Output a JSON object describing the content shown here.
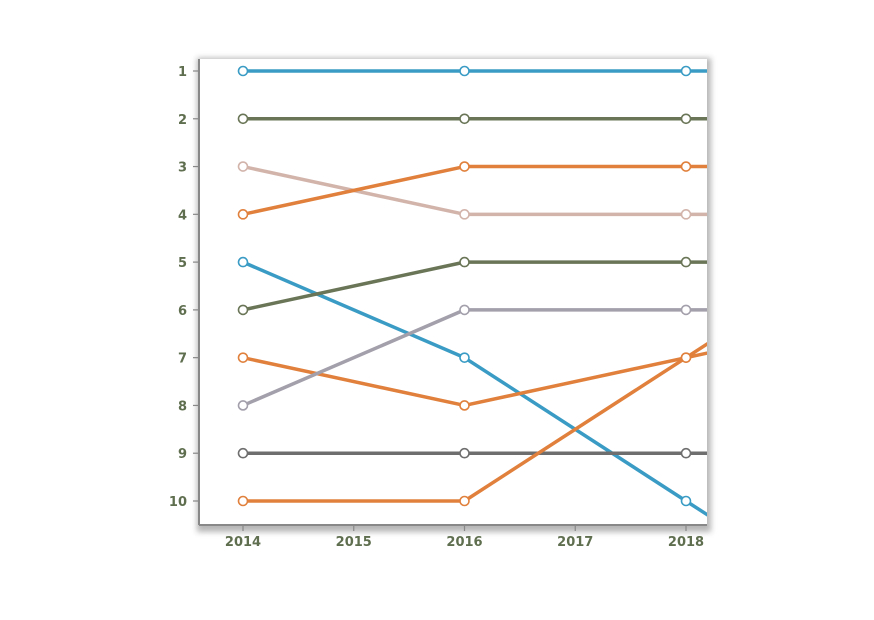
{
  "chart_data": {
    "type": "line",
    "title": "",
    "xlabel": "",
    "ylabel": "",
    "x_ticks": [
      "2014",
      "2015",
      "2016",
      "2017",
      "2018"
    ],
    "y_ticks": [
      "1",
      "2",
      "3",
      "4",
      "5",
      "6",
      "7",
      "8",
      "9",
      "10"
    ],
    "xlim": [
      2014,
      2018
    ],
    "ylim": [
      10,
      1
    ],
    "y_inverted": true,
    "grid": false,
    "legend": "none",
    "series": [
      {
        "color": "#3a9cc4",
        "x": [
          2014,
          2016,
          2018
        ],
        "values": [
          1,
          1,
          1
        ]
      },
      {
        "color": "#697556",
        "x": [
          2014,
          2016,
          2018
        ],
        "values": [
          2,
          2,
          2
        ]
      },
      {
        "color": "#d2b4ab",
        "x": [
          2014,
          2016,
          2018
        ],
        "values": [
          3,
          4,
          4
        ]
      },
      {
        "color": "#e0803c",
        "x": [
          2014,
          2016,
          2018
        ],
        "values": [
          4,
          3,
          3
        ]
      },
      {
        "color": "#3a9cc4",
        "x": [
          2014,
          2016,
          2018
        ],
        "values": [
          5,
          7,
          10
        ]
      },
      {
        "color": "#697556",
        "x": [
          2014,
          2016,
          2018
        ],
        "values": [
          6,
          5,
          5
        ]
      },
      {
        "color": "#e0803c",
        "x": [
          2014,
          2016,
          2018
        ],
        "values": [
          7,
          8,
          7
        ]
      },
      {
        "color": "#a39fab",
        "x": [
          2014,
          2016,
          2018
        ],
        "values": [
          8,
          6,
          6
        ]
      },
      {
        "color": "#6e6e6e",
        "x": [
          2014,
          2016,
          2018
        ],
        "values": [
          9,
          9,
          9
        ]
      },
      {
        "color": "#e0803c",
        "x": [
          2014,
          2016,
          2018
        ],
        "values": [
          10,
          10,
          7
        ]
      }
    ],
    "colors": {
      "tick_text": "#5e6e4e",
      "axis_frame": "#888888",
      "marker_fill": "#ffffff"
    }
  }
}
